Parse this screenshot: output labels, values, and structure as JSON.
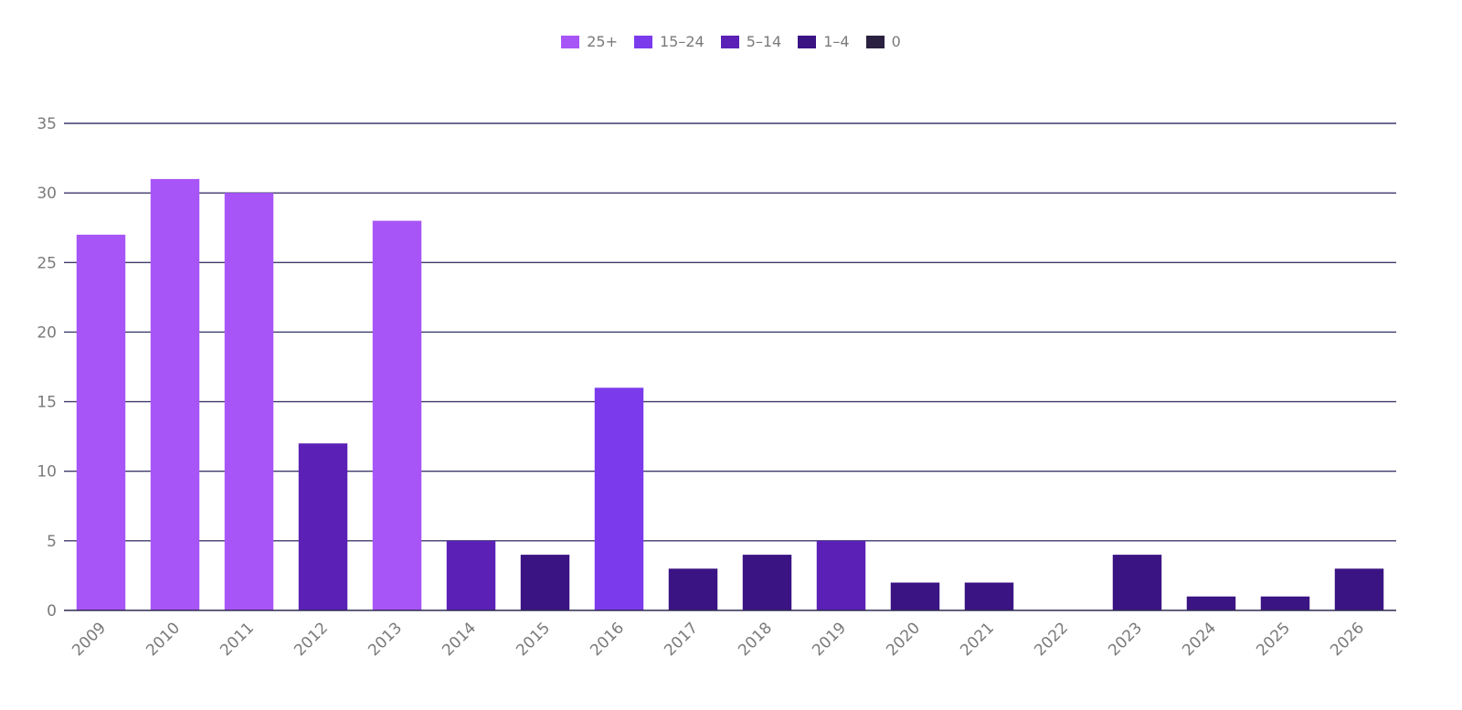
{
  "chart_data": {
    "type": "bar",
    "categories": [
      "2009",
      "2010",
      "2011",
      "2012",
      "2013",
      "2014",
      "2015",
      "2016",
      "2017",
      "2018",
      "2019",
      "2020",
      "2021",
      "2022",
      "2023",
      "2024",
      "2025",
      "2026"
    ],
    "values": [
      27,
      31,
      30,
      12,
      28,
      5,
      4,
      16,
      3,
      4,
      5,
      2,
      2,
      0,
      4,
      1,
      1,
      3
    ],
    "ylim": [
      0,
      35
    ],
    "yticks": [
      0,
      5,
      10,
      15,
      20,
      25,
      30,
      35
    ],
    "grid": true,
    "legend_placement": "top-center",
    "legend": [
      {
        "label": "25+",
        "color": "#a855f7"
      },
      {
        "label": "15–24",
        "color": "#7c3aed"
      },
      {
        "label": "5–14",
        "color": "#5b21b6"
      },
      {
        "label": "1–4",
        "color": "#3b1484"
      },
      {
        "label": "0",
        "color": "#2a2140"
      }
    ],
    "colors": {
      "gridline": "#3d3a6b",
      "axis": "#2e2b52",
      "tick_label": "#7a7a7a"
    }
  }
}
